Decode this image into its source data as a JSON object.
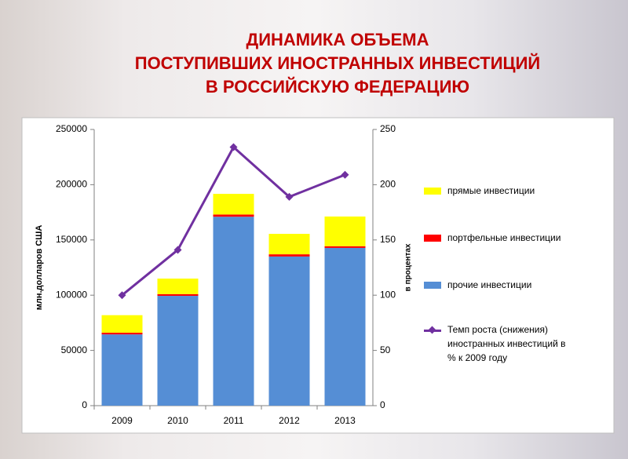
{
  "chart_data": {
    "type": "bar",
    "stacked": true,
    "title": [
      "ДИНАМИКА ОБЪЕМА",
      "ПОСТУПИВШИХ ИНОСТРАННЫХ ИНВЕСТИЦИЙ",
      "В РОССИЙСКУЮ ФЕДЕРАЦИЮ"
    ],
    "y_label": "млн.долларов США",
    "y2_label": "в процентах",
    "categories": [
      "2009",
      "2010",
      "2011",
      "2012",
      "2013"
    ],
    "series": [
      {
        "name": "прочие инвестиции",
        "type": "bar",
        "color": "#558ed5",
        "values": [
          64500,
          99400,
          171000,
          135000,
          142800
        ]
      },
      {
        "name": "портфельные инвестиции",
        "type": "bar",
        "color": "#ff0000",
        "values": [
          1500,
          1500,
          2000,
          2000,
          1500
        ]
      },
      {
        "name": "прямые  инвестиции",
        "type": "bar",
        "color": "#ffff00",
        "values": [
          15900,
          14100,
          18700,
          18500,
          26900
        ]
      },
      {
        "name": "Темп роста (снижения) иностранных инвестиций в % к 2009 году",
        "type": "line",
        "axis": "y2",
        "color": "#7030a0",
        "values": [
          100,
          141,
          234,
          189,
          209
        ]
      }
    ],
    "ylim": [
      0,
      250000
    ],
    "yticks": [
      0,
      50000,
      100000,
      150000,
      200000,
      250000
    ],
    "y2lim": [
      0,
      250
    ],
    "y2ticks": [
      0,
      50,
      100,
      150,
      200,
      250
    ]
  }
}
